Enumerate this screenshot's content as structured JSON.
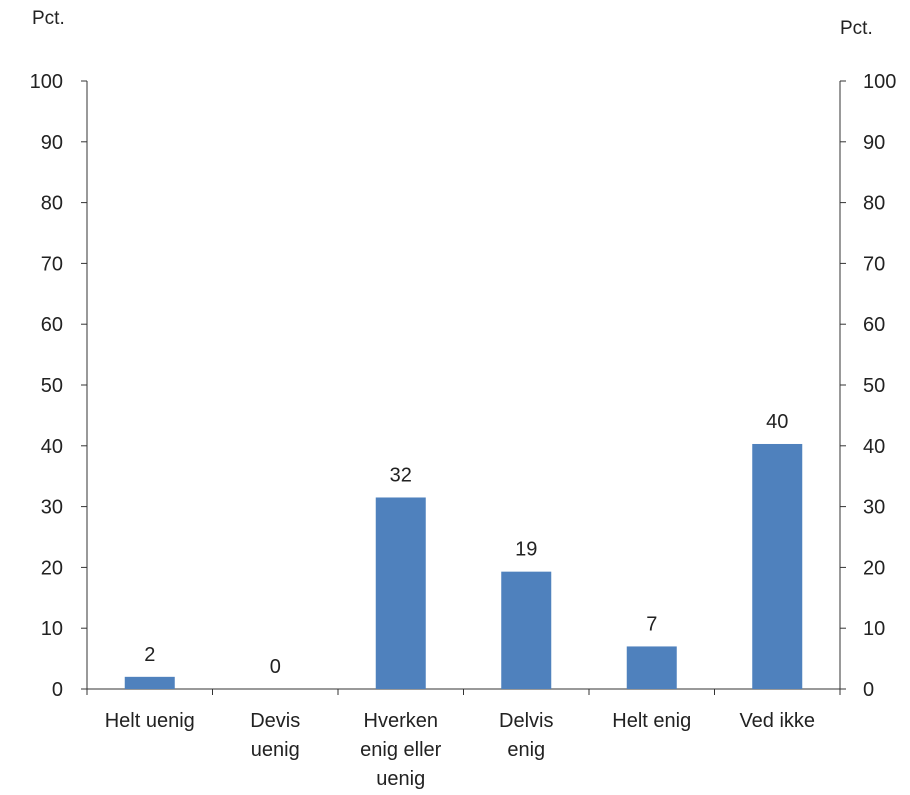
{
  "chart_data": {
    "type": "bar",
    "title": "",
    "left_axis_unit": "Pct.",
    "right_axis_unit": "Pct.",
    "categories": [
      [
        "Helt uenig"
      ],
      [
        "Devis",
        "uenig"
      ],
      [
        "Hverken",
        "enig eller",
        "uenig"
      ],
      [
        "Delvis",
        "enig"
      ],
      [
        "Helt enig"
      ],
      [
        "Ved ikke"
      ]
    ],
    "values": [
      2,
      0,
      31.5,
      19.3,
      7,
      40.3
    ],
    "data_labels": [
      "2",
      "0",
      "32",
      "19",
      "7",
      "40"
    ],
    "ylim": [
      0,
      100
    ],
    "yticks": [
      0,
      10,
      20,
      30,
      40,
      50,
      60,
      70,
      80,
      90,
      100
    ],
    "bar_color": "#4F81BD",
    "grid": false,
    "legend": "none"
  }
}
